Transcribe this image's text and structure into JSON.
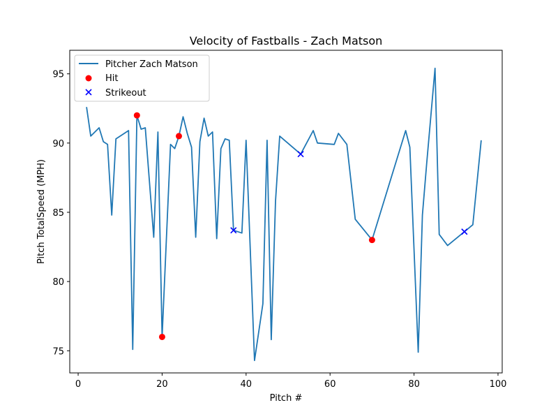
{
  "chart_data": {
    "type": "line",
    "title": "Velocity of Fastballs - Zach Matson",
    "xlabel": "Pitch #",
    "ylabel": "Pitch TotalSpeed (MPH)",
    "xlim": [
      -2,
      101
    ],
    "ylim": [
      73.4,
      96.7
    ],
    "xticks": [
      0,
      20,
      40,
      60,
      80,
      100
    ],
    "yticks": [
      75,
      80,
      85,
      90,
      95
    ],
    "grid": false,
    "legend_position": "upper-left",
    "series": [
      {
        "name": "Pitcher Zach Matson",
        "color": "#1f77b4",
        "points": [
          [
            2,
            92.6
          ],
          [
            3,
            90.5
          ],
          [
            5,
            91.1
          ],
          [
            6,
            90.1
          ],
          [
            7,
            89.9
          ],
          [
            8,
            84.8
          ],
          [
            9,
            90.3
          ],
          [
            12,
            90.9
          ],
          [
            13,
            75.1
          ],
          [
            14,
            92.0
          ],
          [
            15,
            91.0
          ],
          [
            16,
            91.1
          ],
          [
            18,
            83.2
          ],
          [
            19,
            90.8
          ],
          [
            20,
            76.0
          ],
          [
            22,
            89.9
          ],
          [
            23,
            89.6
          ],
          [
            24,
            90.5
          ],
          [
            25,
            91.9
          ],
          [
            26,
            90.7
          ],
          [
            27,
            89.7
          ],
          [
            28,
            83.2
          ],
          [
            29,
            90.1
          ],
          [
            30,
            91.8
          ],
          [
            31,
            90.5
          ],
          [
            32,
            90.8
          ],
          [
            33,
            83.1
          ],
          [
            34,
            89.6
          ],
          [
            35,
            90.3
          ],
          [
            36,
            90.2
          ],
          [
            37,
            83.7
          ],
          [
            39,
            83.5
          ],
          [
            40,
            90.2
          ],
          [
            42,
            74.3
          ],
          [
            44,
            78.4
          ],
          [
            45,
            90.2
          ],
          [
            46,
            75.8
          ],
          [
            47,
            85.8
          ],
          [
            48,
            90.5
          ],
          [
            53,
            89.2
          ],
          [
            56,
            90.9
          ],
          [
            57,
            90.0
          ],
          [
            61,
            89.9
          ],
          [
            62,
            90.7
          ],
          [
            64,
            89.9
          ],
          [
            66,
            84.5
          ],
          [
            70,
            83.0
          ],
          [
            78,
            90.9
          ],
          [
            79,
            89.7
          ],
          [
            81,
            74.9
          ],
          [
            82,
            84.8
          ],
          [
            83,
            88.5
          ],
          [
            85,
            95.4
          ],
          [
            86,
            83.4
          ],
          [
            88,
            82.6
          ],
          [
            92,
            83.6
          ],
          [
            94,
            84.1
          ],
          [
            96,
            90.2
          ]
        ]
      }
    ],
    "markers": [
      {
        "name": "Hit",
        "marker": "circle",
        "color": "#ff0000",
        "points": [
          [
            14,
            92.0
          ],
          [
            20,
            76.0
          ],
          [
            24,
            90.5
          ],
          [
            70,
            83.0
          ]
        ]
      },
      {
        "name": "Strikeout",
        "marker": "x",
        "color": "#0000ff",
        "points": [
          [
            37,
            83.7
          ],
          [
            53,
            89.2
          ],
          [
            92,
            83.6
          ]
        ]
      }
    ]
  }
}
